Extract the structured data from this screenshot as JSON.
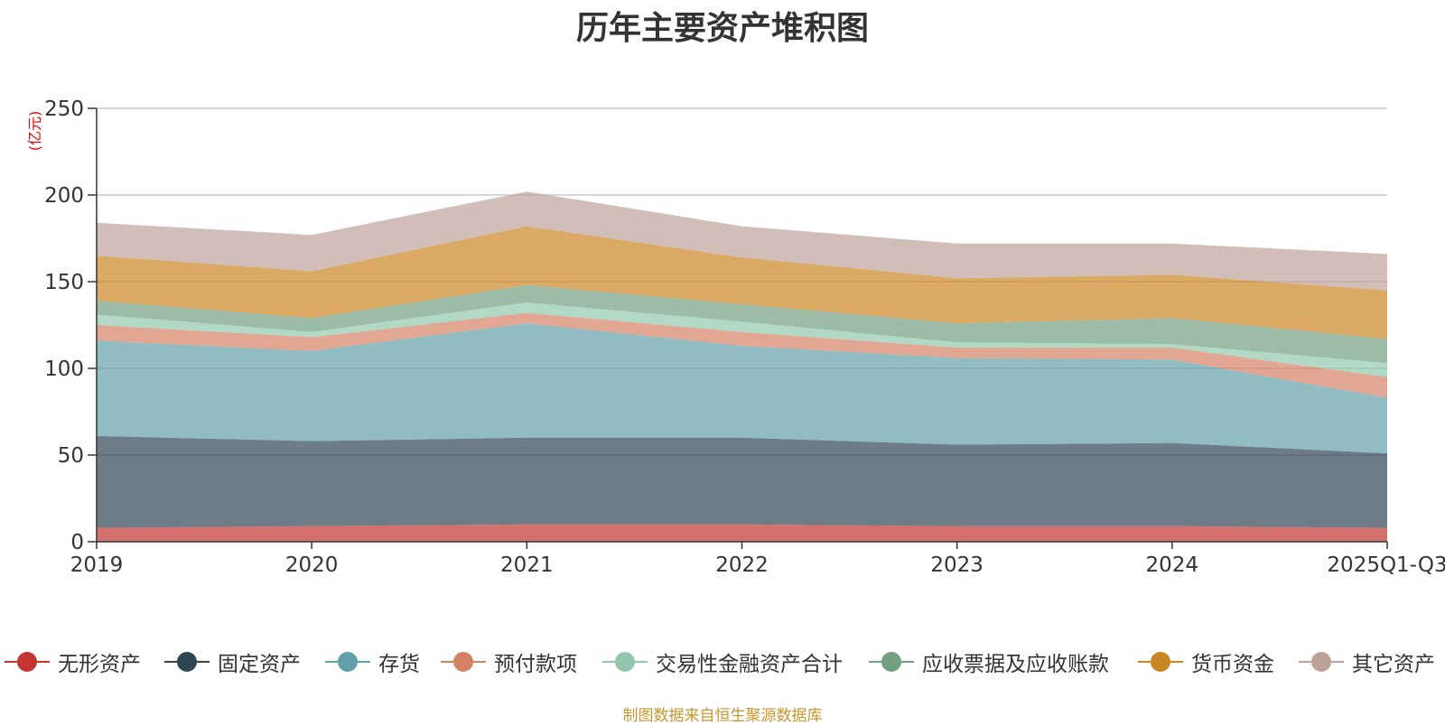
{
  "chart_data": {
    "type": "area",
    "stacked": true,
    "title": "历年主要资产堆积图",
    "ylabel": "(亿元)",
    "xlabel": "",
    "categories": [
      "2019",
      "2020",
      "2021",
      "2022",
      "2023",
      "2024",
      "2025Q1-Q3"
    ],
    "ylim": [
      0,
      250
    ],
    "yticks": [
      0,
      50,
      100,
      150,
      200,
      250
    ],
    "grid": true,
    "legend_position": "bottom",
    "series": [
      {
        "name": "无形资产",
        "color": "#c23531",
        "values": [
          8,
          9,
          10,
          10,
          9,
          9,
          8
        ]
      },
      {
        "name": "固定资产",
        "color": "#2f4554",
        "values": [
          53,
          49,
          50,
          50,
          47,
          48,
          43
        ]
      },
      {
        "name": "存货",
        "color": "#61a0a8",
        "values": [
          55,
          52,
          66,
          53,
          50,
          48,
          32
        ]
      },
      {
        "name": "预付款项",
        "color": "#d48265",
        "values": [
          9,
          8,
          6,
          8,
          6,
          7,
          12
        ]
      },
      {
        "name": "交易性金融资产合计",
        "color": "#91c7ae",
        "values": [
          6,
          3,
          6,
          6,
          3,
          2,
          8
        ]
      },
      {
        "name": "应收票据及应收账款",
        "color": "#749f83",
        "values": [
          8,
          8,
          10,
          10,
          11,
          15,
          14
        ]
      },
      {
        "name": "货币资金",
        "color": "#ca8622",
        "values": [
          26,
          27,
          34,
          27,
          26,
          25,
          28
        ]
      },
      {
        "name": "其它资产",
        "color": "#bda29a",
        "values": [
          19,
          21,
          20,
          18,
          20,
          18,
          21
        ]
      }
    ]
  },
  "source_note": "制图数据来自恒生聚源数据库"
}
